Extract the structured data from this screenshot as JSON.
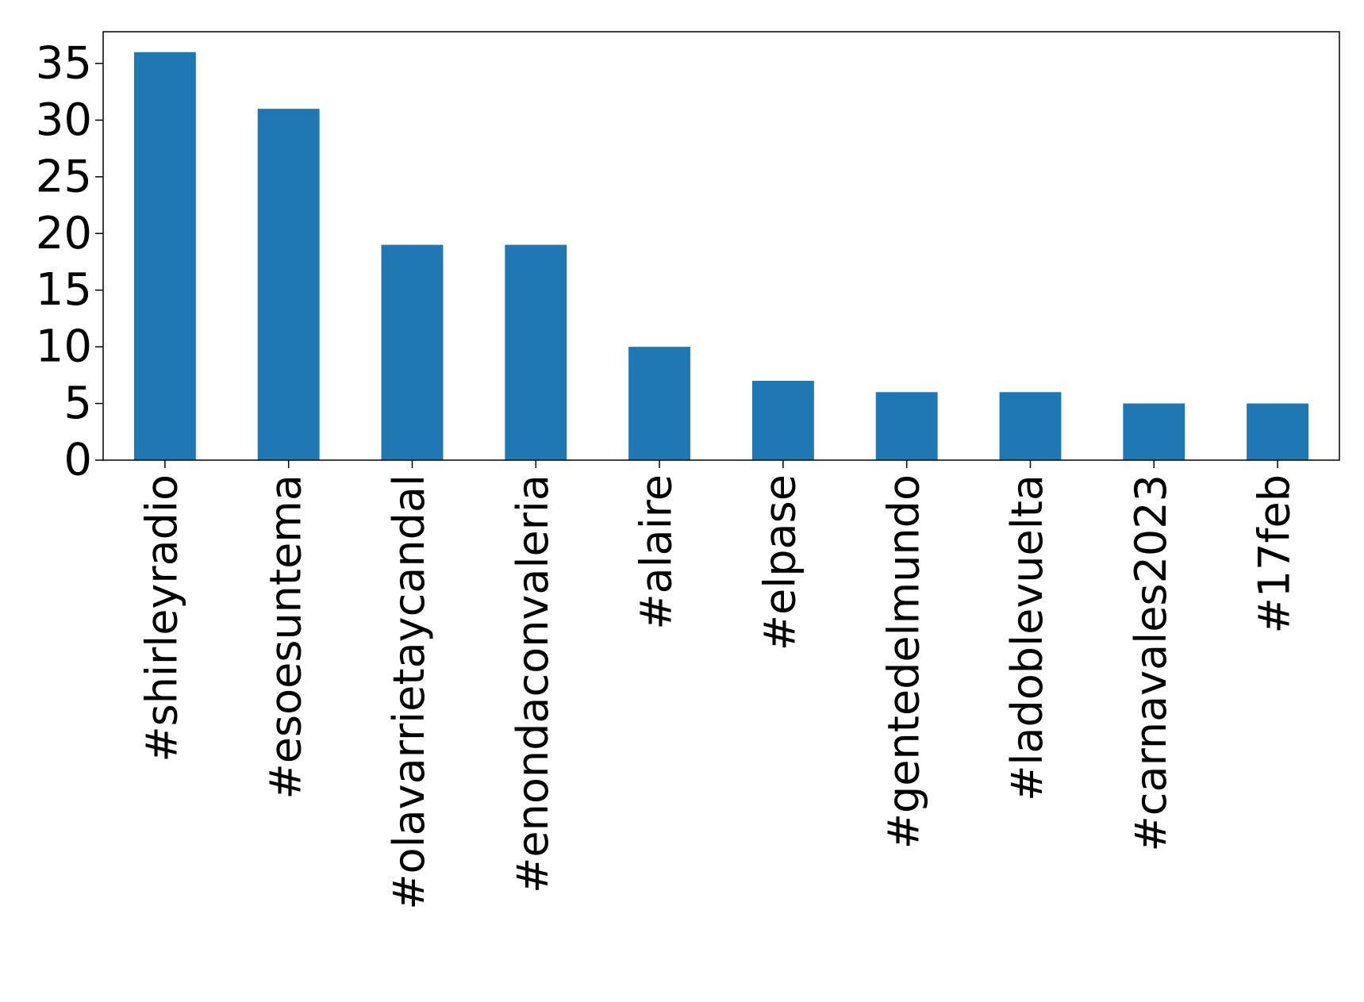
{
  "chart_data": {
    "type": "bar",
    "title": "",
    "xlabel": "",
    "ylabel": "",
    "categories": [
      "#shirleyradio",
      "#esoesuntema",
      "#olavarrietaycandal",
      "#enondaconvaleria",
      "#alaire",
      "#elpase",
      "#gentedelmundo",
      "#ladoblevuelta",
      "#carnavales2023",
      "#17feb"
    ],
    "values": [
      36,
      31,
      19,
      19,
      10,
      7,
      6,
      6,
      5,
      5
    ],
    "ylim": [
      0,
      37.8
    ],
    "yticks": [
      0,
      5,
      10,
      15,
      20,
      25,
      30,
      35
    ],
    "ytick_labels": [
      "0",
      "5",
      "10",
      "15",
      "20",
      "25",
      "30",
      "35"
    ],
    "bar_color": "#1f77b4",
    "grid": false,
    "legend": "none"
  }
}
